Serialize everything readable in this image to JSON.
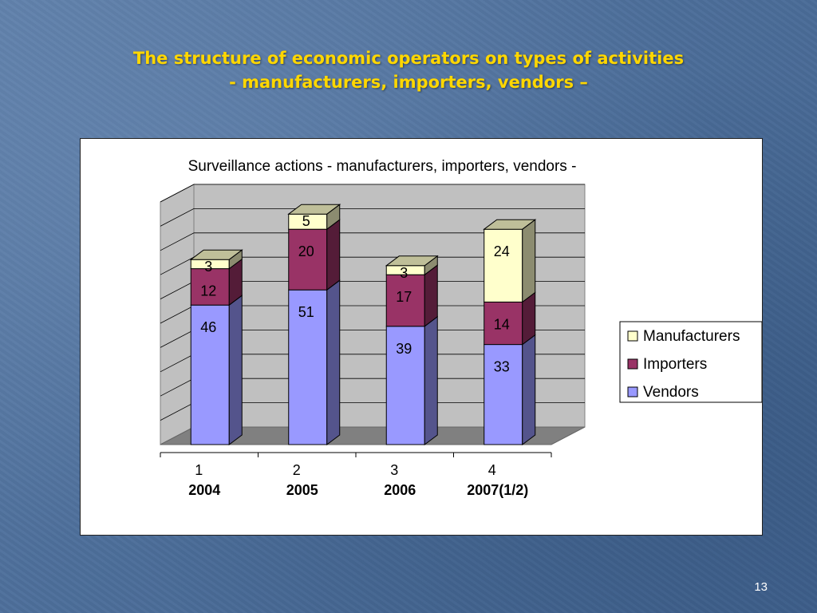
{
  "slide": {
    "title_line1": "The structure of economic operators on types of activities",
    "title_line2": "- manufacturers, importers, vendors –",
    "page_number": "13"
  },
  "colors": {
    "title": "#ffd700",
    "manufacturers": "#ffffcc",
    "importers": "#993366",
    "vendors": "#9999ff"
  },
  "chart_data": {
    "type": "bar",
    "stacked": true,
    "three_d": true,
    "title": "Surveillance actions - manufacturers, importers, vendors -",
    "categories": [
      "1",
      "2",
      "3",
      "4"
    ],
    "category_sublabels": [
      "2004",
      "2005",
      "2006",
      "2007(1/2)"
    ],
    "series": [
      {
        "name": "Vendors",
        "values": [
          46,
          51,
          39,
          33
        ],
        "color": "#9999ff"
      },
      {
        "name": "Importers",
        "values": [
          12,
          20,
          17,
          14
        ],
        "color": "#993366"
      },
      {
        "name": "Manufacturers",
        "values": [
          3,
          5,
          3,
          24
        ],
        "color": "#ffffcc"
      }
    ],
    "legend_order": [
      "Manufacturers",
      "Importers",
      "Vendors"
    ],
    "legend_position": "right",
    "ylim": [
      0,
      80
    ],
    "grid": true
  }
}
